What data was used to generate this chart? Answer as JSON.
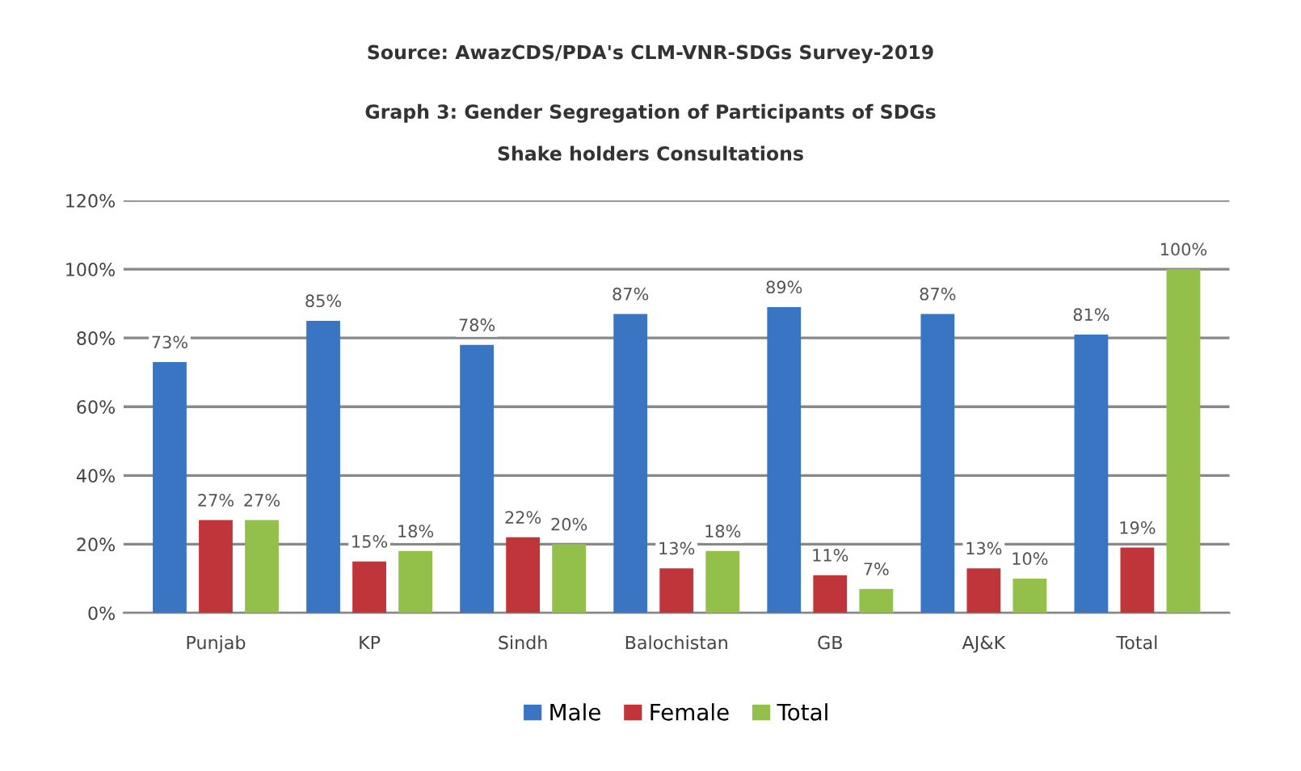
{
  "chart_data": {
    "type": "bar",
    "annotations": [
      "Source: AwazCDS/PDA's CLM-VNR-SDGs Survey-2019"
    ],
    "title": "Graph 3: Gender Segregation of Participants of SDGs\nShake holders Consultations",
    "categories": [
      "Punjab",
      "KP",
      "Sindh",
      "Balochistan",
      "GB",
      "AJ&K",
      "Total"
    ],
    "series": [
      {
        "name": "Male",
        "color": "#3a75c4",
        "values": [
          73,
          85,
          78,
          87,
          89,
          87,
          81
        ],
        "value_labels": [
          "73%",
          "85%",
          "78%",
          "87%",
          "89%",
          "87%",
          "81%"
        ]
      },
      {
        "name": "Female",
        "color": "#c0353a",
        "values": [
          27,
          15,
          22,
          13,
          11,
          13,
          19
        ],
        "value_labels": [
          "27%",
          "15%",
          "22%",
          "13%",
          "11%",
          "13%",
          "19%"
        ]
      },
      {
        "name": "Total",
        "color": "#92c04a",
        "values": [
          27,
          18,
          20,
          18,
          7,
          10,
          100
        ],
        "value_labels": [
          "27%",
          "18%",
          "20%",
          "18%",
          "7%",
          "10%",
          "100%"
        ]
      }
    ],
    "ylim": [
      0,
      120
    ],
    "yticks": [
      {
        "value": 0,
        "label": "0%"
      },
      {
        "value": 20,
        "label": "20%"
      },
      {
        "value": 40,
        "label": "40%"
      },
      {
        "value": 60,
        "label": "60%"
      },
      {
        "value": 80,
        "label": "80%"
      },
      {
        "value": 100,
        "label": "100%"
      },
      {
        "value": 120,
        "label": "120%"
      }
    ],
    "grid": "y",
    "legend": "bottom"
  }
}
